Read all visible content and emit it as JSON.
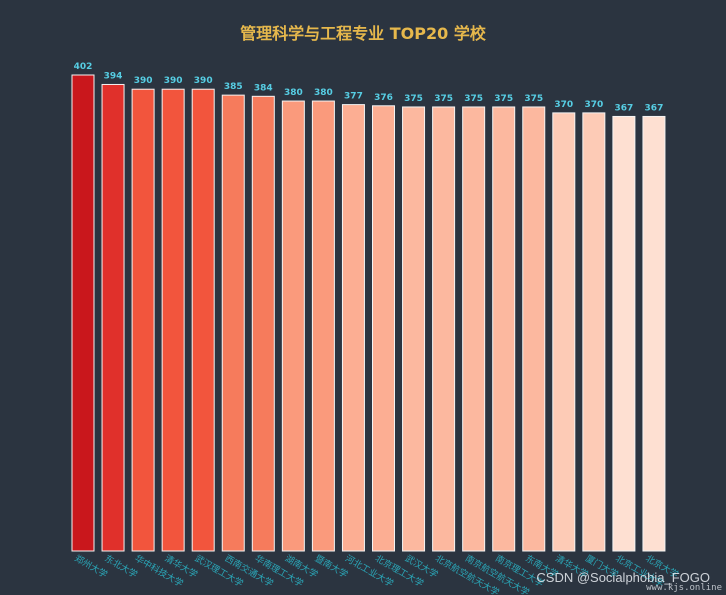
{
  "chart_data": {
    "type": "bar",
    "title": "管理科学与工程专业 TOP20 学校",
    "categories": [
      "郑州大学",
      "东北大学",
      "华中科技大学",
      "清华大学",
      "武汉理工大学",
      "西南交通大学",
      "华南理工大学",
      "湖南大学",
      "暨南大学",
      "河北工业大学",
      "北京理工大学",
      "武汉大学",
      "北京航空航天大学",
      "南京航空航天大学",
      "南京理工大学",
      "东南大学",
      "清华大学",
      "厦门大学",
      "北京工业大学",
      "北京大学"
    ],
    "values": [
      402,
      394,
      390,
      390,
      390,
      385,
      384,
      380,
      380,
      377,
      376,
      375,
      375,
      375,
      375,
      375,
      370,
      370,
      367,
      367
    ],
    "ylim": [
      0,
      402
    ],
    "colors": [
      "#c9171c",
      "#e0302b",
      "#f2553d",
      "#f2553d",
      "#f2553d",
      "#f67b5c",
      "#f67b5c",
      "#fa9a7c",
      "#fa9a7c",
      "#fcae93",
      "#fcae93",
      "#fcb89f",
      "#fcb89f",
      "#fcb89f",
      "#fcb89f",
      "#fcb89f",
      "#fdcbb6",
      "#fdcbb6",
      "#fee0d2",
      "#fee0d2"
    ],
    "label_color": "#56cde3",
    "tick_label_color": "#2aa7b8",
    "grid": false,
    "legend": "none"
  },
  "watermark": "CSDN @Socialphobia_FOGO",
  "watermark_sub": "www.kjs.online"
}
